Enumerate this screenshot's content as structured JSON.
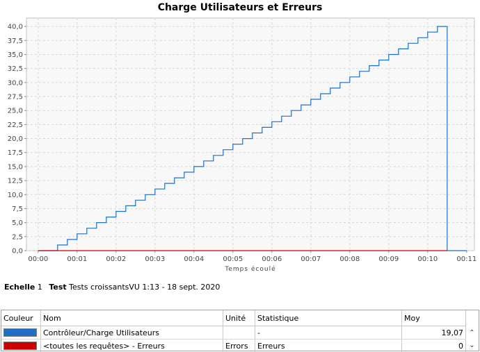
{
  "chart_data": {
    "type": "line",
    "title": "Charge Utilisateurs et Erreurs",
    "xlabel": "Temps écoulé",
    "ylabel": "",
    "x_ticks": [
      "00:00",
      "00:01",
      "00:02",
      "00:03",
      "00:04",
      "00:05",
      "00:06",
      "00:07",
      "00:08",
      "00:09",
      "00:10",
      "00:11"
    ],
    "y_ticks": [
      "0,0",
      "2,5",
      "5,0",
      "7,5",
      "10,0",
      "12,5",
      "15,0",
      "17,5",
      "20,0",
      "22,5",
      "25,0",
      "27,5",
      "30,0",
      "32,5",
      "35,0",
      "37,5",
      "40,0"
    ],
    "xlim_minutes": [
      -0.3,
      11.2
    ],
    "ylim": [
      0,
      41.5
    ],
    "grid": true,
    "series": [
      {
        "name": "Contrôleur/Charge Utilisateurs",
        "color": "#1f6fc5",
        "step": true,
        "x_minutes": [
          0.0,
          0.5,
          0.75,
          1.0,
          1.25,
          1.5,
          1.75,
          2.0,
          2.25,
          2.5,
          2.75,
          3.0,
          3.25,
          3.5,
          3.75,
          4.0,
          4.25,
          4.5,
          4.75,
          5.0,
          5.25,
          5.5,
          5.75,
          6.0,
          6.25,
          6.5,
          6.75,
          7.0,
          7.25,
          7.5,
          7.75,
          8.0,
          8.25,
          8.5,
          8.75,
          9.0,
          9.25,
          9.5,
          9.75,
          10.0,
          10.25,
          10.5,
          10.5,
          11.0
        ],
        "values": [
          0,
          1,
          2,
          3,
          4,
          5,
          6,
          7,
          8,
          9,
          10,
          11,
          12,
          13,
          14,
          15,
          16,
          17,
          18,
          19,
          20,
          21,
          22,
          23,
          24,
          25,
          26,
          27,
          28,
          29,
          30,
          31,
          32,
          33,
          34,
          35,
          36,
          37,
          38,
          39,
          40,
          40,
          0,
          0
        ]
      },
      {
        "name": "<toutes les requêtes> - Erreurs",
        "color": "#cc0000",
        "step": false,
        "x_minutes": [
          0.0,
          10.5
        ],
        "values": [
          0,
          0
        ]
      }
    ]
  },
  "info": {
    "scale_label": "Echelle",
    "scale_value": "1",
    "test_label": "Test",
    "test_value": "Tests croissantsVU 1:13 - 18 sept. 2020"
  },
  "legend_table": {
    "headers": {
      "color": "Couleur",
      "name": "Nom",
      "unit": "Unité",
      "stat": "Statistique",
      "avg": "Moy"
    },
    "rows": [
      {
        "color": "#1f6fc5",
        "name": "Contrôleur/Charge Utilisateurs",
        "unit": "",
        "stat": "-",
        "avg": "19,07"
      },
      {
        "color": "#cc0000",
        "name": "<toutes les requêtes> - Erreurs",
        "unit": "Errors",
        "stat": "Erreurs",
        "avg": "0"
      }
    ],
    "scroll_up_icon": "chevron-up-icon",
    "scroll_down_icon": "chevron-down-icon"
  }
}
